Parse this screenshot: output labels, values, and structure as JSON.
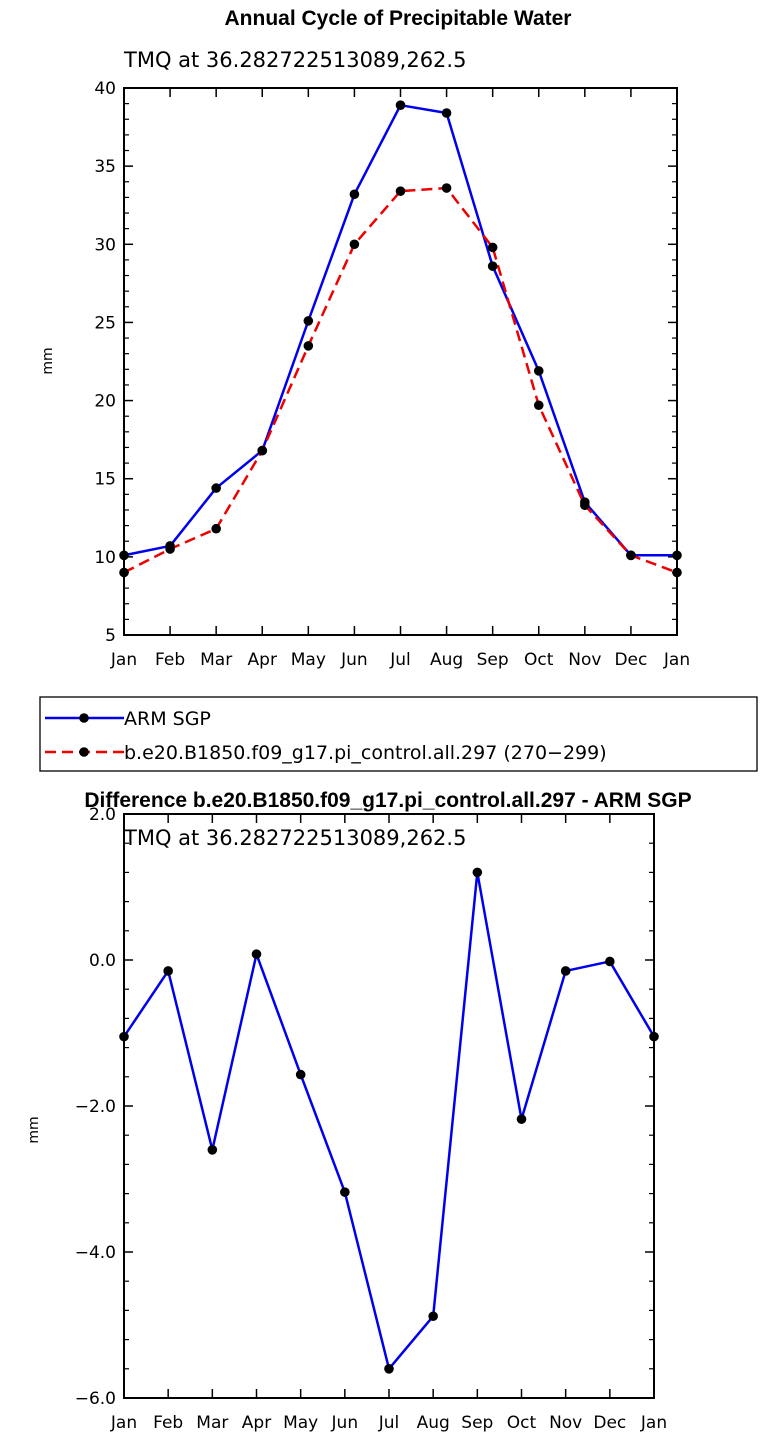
{
  "chart_data": [
    {
      "type": "line",
      "title": "Annual Cycle of Precipitable Water",
      "subtitle": "TMQ at 36.282722513089,262.5",
      "ylabel": "mm",
      "xlabel": "",
      "categories": [
        "Jan",
        "Feb",
        "Mar",
        "Apr",
        "May",
        "Jun",
        "Jul",
        "Aug",
        "Sep",
        "Oct",
        "Nov",
        "Dec",
        "Jan"
      ],
      "ylim": [
        5,
        40
      ],
      "yticks": [
        "5",
        "10",
        "15",
        "20",
        "25",
        "30",
        "35",
        "40"
      ],
      "series": [
        {
          "name": "ARM SGP",
          "color": "#0000ee",
          "dash": "solid",
          "values": [
            10.1,
            10.7,
            14.4,
            16.8,
            25.1,
            33.2,
            38.9,
            38.4,
            28.6,
            21.9,
            13.5,
            10.1,
            10.1
          ]
        },
        {
          "name": "b.e20.B1850.f09_g17.pi_control.all.297 (270−299)",
          "color": "#ee0000",
          "dash": "dashed",
          "values": [
            9.0,
            10.5,
            11.8,
            16.8,
            23.5,
            30.0,
            33.4,
            33.6,
            29.8,
            19.7,
            13.3,
            10.1,
            9.0
          ]
        }
      ]
    },
    {
      "type": "line",
      "title": "Difference b.e20.B1850.f09_g17.pi_control.all.297 - ARM SGP",
      "subtitle": "TMQ at 36.282722513089,262.5",
      "ylabel": "mm",
      "xlabel": "",
      "categories": [
        "Jan",
        "Feb",
        "Mar",
        "Apr",
        "May",
        "Jun",
        "Jul",
        "Aug",
        "Sep",
        "Oct",
        "Nov",
        "Dec",
        "Jan"
      ],
      "ylim": [
        -6,
        2
      ],
      "yticks": [
        "−6.0",
        "−4.0",
        "−2.0",
        "0.0",
        "2.0"
      ],
      "series": [
        {
          "name": "Difference",
          "color": "#0000ee",
          "dash": "solid",
          "values": [
            -1.05,
            -0.15,
            -2.6,
            0.08,
            -1.57,
            -3.18,
            -5.6,
            -4.88,
            1.2,
            -2.18,
            -0.15,
            -0.02,
            -1.05
          ]
        }
      ]
    }
  ]
}
